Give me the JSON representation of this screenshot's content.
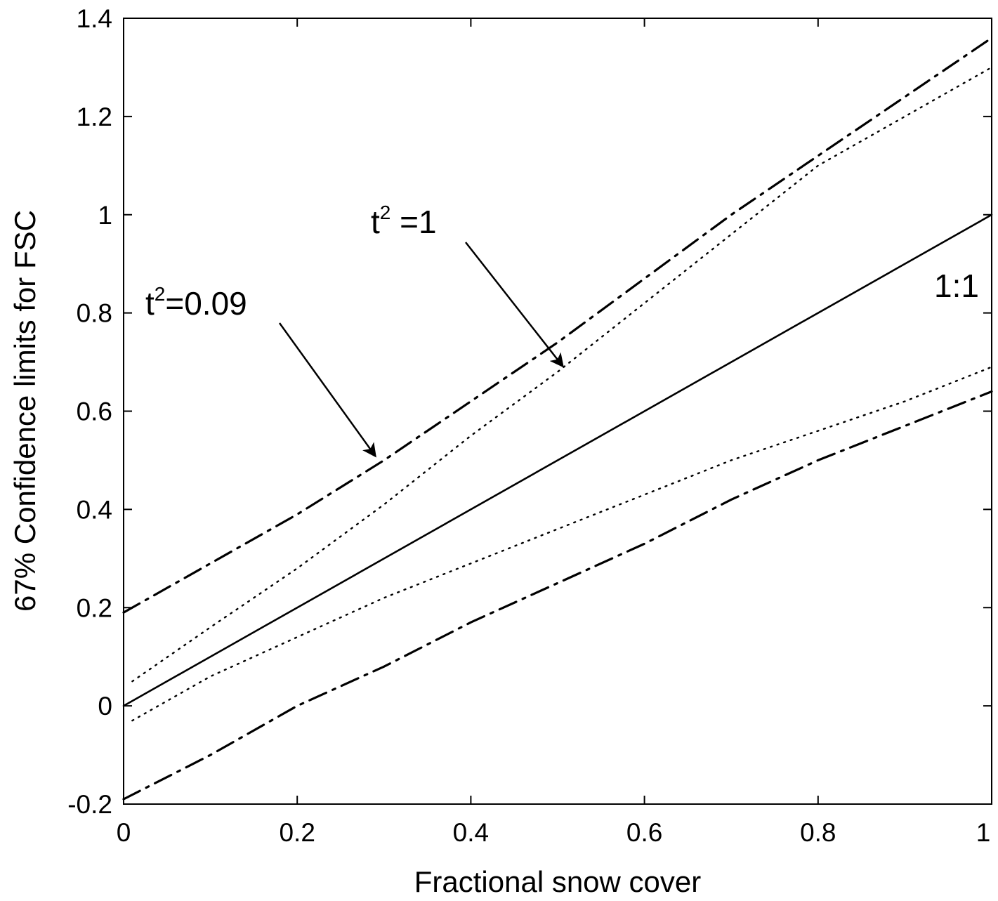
{
  "chart_data": {
    "type": "line",
    "xlabel": "Fractional snow cover",
    "ylabel": "67% Confidence limits for FSC",
    "xlim": [
      0,
      1
    ],
    "ylim": [
      -0.2,
      1.4
    ],
    "xticks": [
      0,
      0.2,
      0.4,
      0.6,
      0.8,
      1
    ],
    "xtick_labels": [
      "0",
      "0.2",
      "0.4",
      "0.6",
      "0.8",
      "1"
    ],
    "yticks": [
      -0.2,
      0,
      0.2,
      0.4,
      0.6,
      0.8,
      1,
      1.2,
      1.4
    ],
    "ytick_labels": [
      "-0.2",
      "0",
      "0.2",
      "0.4",
      "0.6",
      "0.8",
      "1",
      "1.2",
      "1.4"
    ],
    "grid": false,
    "series": [
      {
        "name": "1:1",
        "style": "solid",
        "x": [
          0,
          1
        ],
        "y": [
          0,
          1
        ]
      },
      {
        "style": "dotted",
        "x": [
          0.01,
          0.1,
          0.2,
          0.3,
          0.4,
          0.5,
          0.6,
          0.7,
          0.8,
          0.9,
          1.0
        ],
        "y": [
          0.05,
          0.16,
          0.28,
          0.41,
          0.55,
          0.68,
          0.82,
          0.96,
          1.1,
          1.2,
          1.3
        ]
      },
      {
        "style": "dotted",
        "x": [
          0.01,
          0.1,
          0.2,
          0.3,
          0.4,
          0.5,
          0.6,
          0.7,
          0.8,
          0.9,
          1.0
        ],
        "y": [
          -0.03,
          0.06,
          0.14,
          0.22,
          0.29,
          0.36,
          0.43,
          0.5,
          0.56,
          0.62,
          0.69
        ]
      },
      {
        "style": "dashdot",
        "x": [
          0.0,
          0.1,
          0.2,
          0.3,
          0.4,
          0.5,
          0.6,
          0.7,
          0.8,
          0.9,
          1.0
        ],
        "y": [
          0.19,
          0.29,
          0.39,
          0.5,
          0.62,
          0.74,
          0.87,
          1.0,
          1.12,
          1.24,
          1.36
        ]
      },
      {
        "style": "dashdot",
        "x": [
          0.0,
          0.1,
          0.2,
          0.3,
          0.4,
          0.5,
          0.6,
          0.7,
          0.8,
          0.9,
          1.0
        ],
        "y": [
          -0.19,
          -0.1,
          0.0,
          0.08,
          0.17,
          0.25,
          0.33,
          0.42,
          0.5,
          0.57,
          0.64
        ]
      }
    ],
    "annotations": [
      {
        "base": "t",
        "sup": "2",
        "text": "=0.09",
        "arrow_to": [
          0.29,
          0.5
        ]
      },
      {
        "base": "t",
        "sup": "2",
        "text": " =1",
        "arrow_to": [
          0.51,
          0.68
        ]
      },
      {
        "text": "1:1"
      }
    ]
  }
}
